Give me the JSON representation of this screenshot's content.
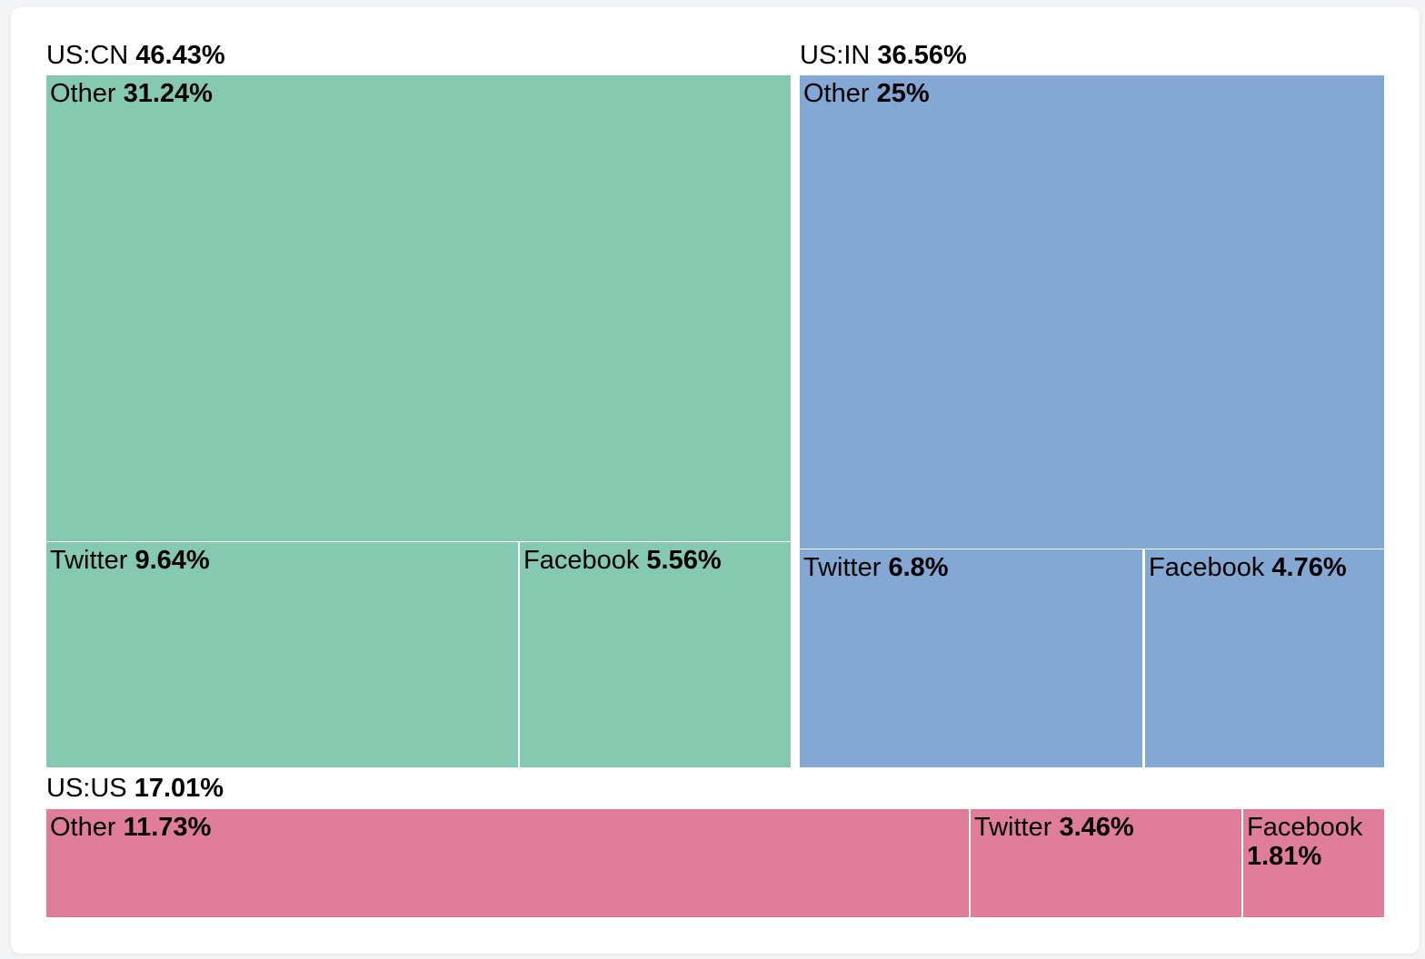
{
  "chart_data": {
    "type": "treemap",
    "groups": [
      {
        "name": "US:CN",
        "value": "46.43%",
        "color": "#85c9b0",
        "children": [
          {
            "name": "Other",
            "value": "31.24%"
          },
          {
            "name": "Twitter",
            "value": "9.64%"
          },
          {
            "name": "Facebook",
            "value": "5.56%"
          }
        ]
      },
      {
        "name": "US:IN",
        "value": "36.56%",
        "color": "#83a8d4",
        "children": [
          {
            "name": "Other",
            "value": "25%"
          },
          {
            "name": "Twitter",
            "value": "6.8%"
          },
          {
            "name": "Facebook",
            "value": "4.76%"
          }
        ]
      },
      {
        "name": "US:US",
        "value": "17.01%",
        "color": "#e07d9b",
        "children": [
          {
            "name": "Other",
            "value": "11.73%"
          },
          {
            "name": "Twitter",
            "value": "3.46%"
          },
          {
            "name": "Facebook",
            "value": "1.81%"
          }
        ]
      }
    ]
  }
}
